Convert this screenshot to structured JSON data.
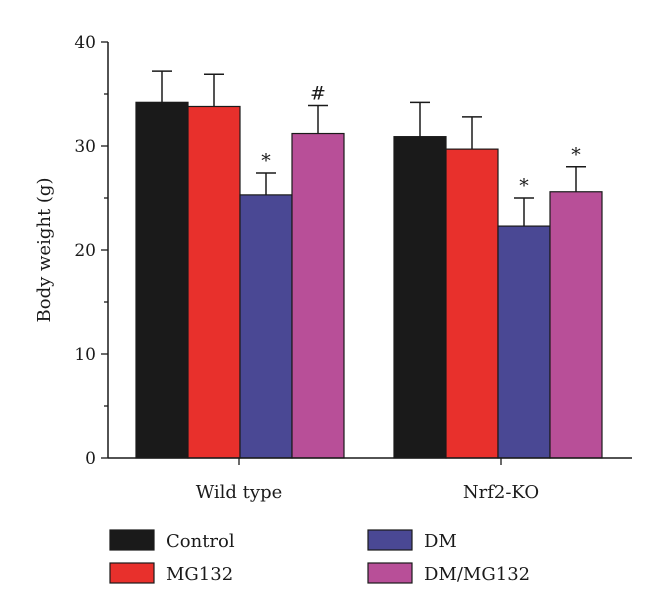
{
  "chart_data": {
    "type": "bar",
    "title": "",
    "xlabel": "",
    "ylabel": "Body weight (g)",
    "ylim": [
      0,
      40
    ],
    "yticks": [
      0,
      10,
      20,
      30,
      40
    ],
    "grid": false,
    "legend_position": "bottom",
    "categories": [
      "Wild type",
      "Nrf2-KO"
    ],
    "series": [
      {
        "name": "Control",
        "color": "#1a1a1a",
        "values": [
          34.2,
          30.9
        ],
        "errors": [
          3.0,
          3.3
        ],
        "annotations": [
          "",
          ""
        ]
      },
      {
        "name": "MG132",
        "color": "#e8302c",
        "values": [
          33.8,
          29.7
        ],
        "errors": [
          3.1,
          3.1
        ],
        "annotations": [
          "",
          ""
        ]
      },
      {
        "name": "DM",
        "color": "#4a4894",
        "values": [
          25.3,
          22.3
        ],
        "errors": [
          2.1,
          2.7
        ],
        "annotations": [
          "*",
          "*"
        ]
      },
      {
        "name": "DM/MG132",
        "color": "#b84f98",
        "values": [
          31.2,
          25.6
        ],
        "errors": [
          2.7,
          2.4
        ],
        "annotations": [
          "#",
          "*"
        ]
      }
    ]
  }
}
